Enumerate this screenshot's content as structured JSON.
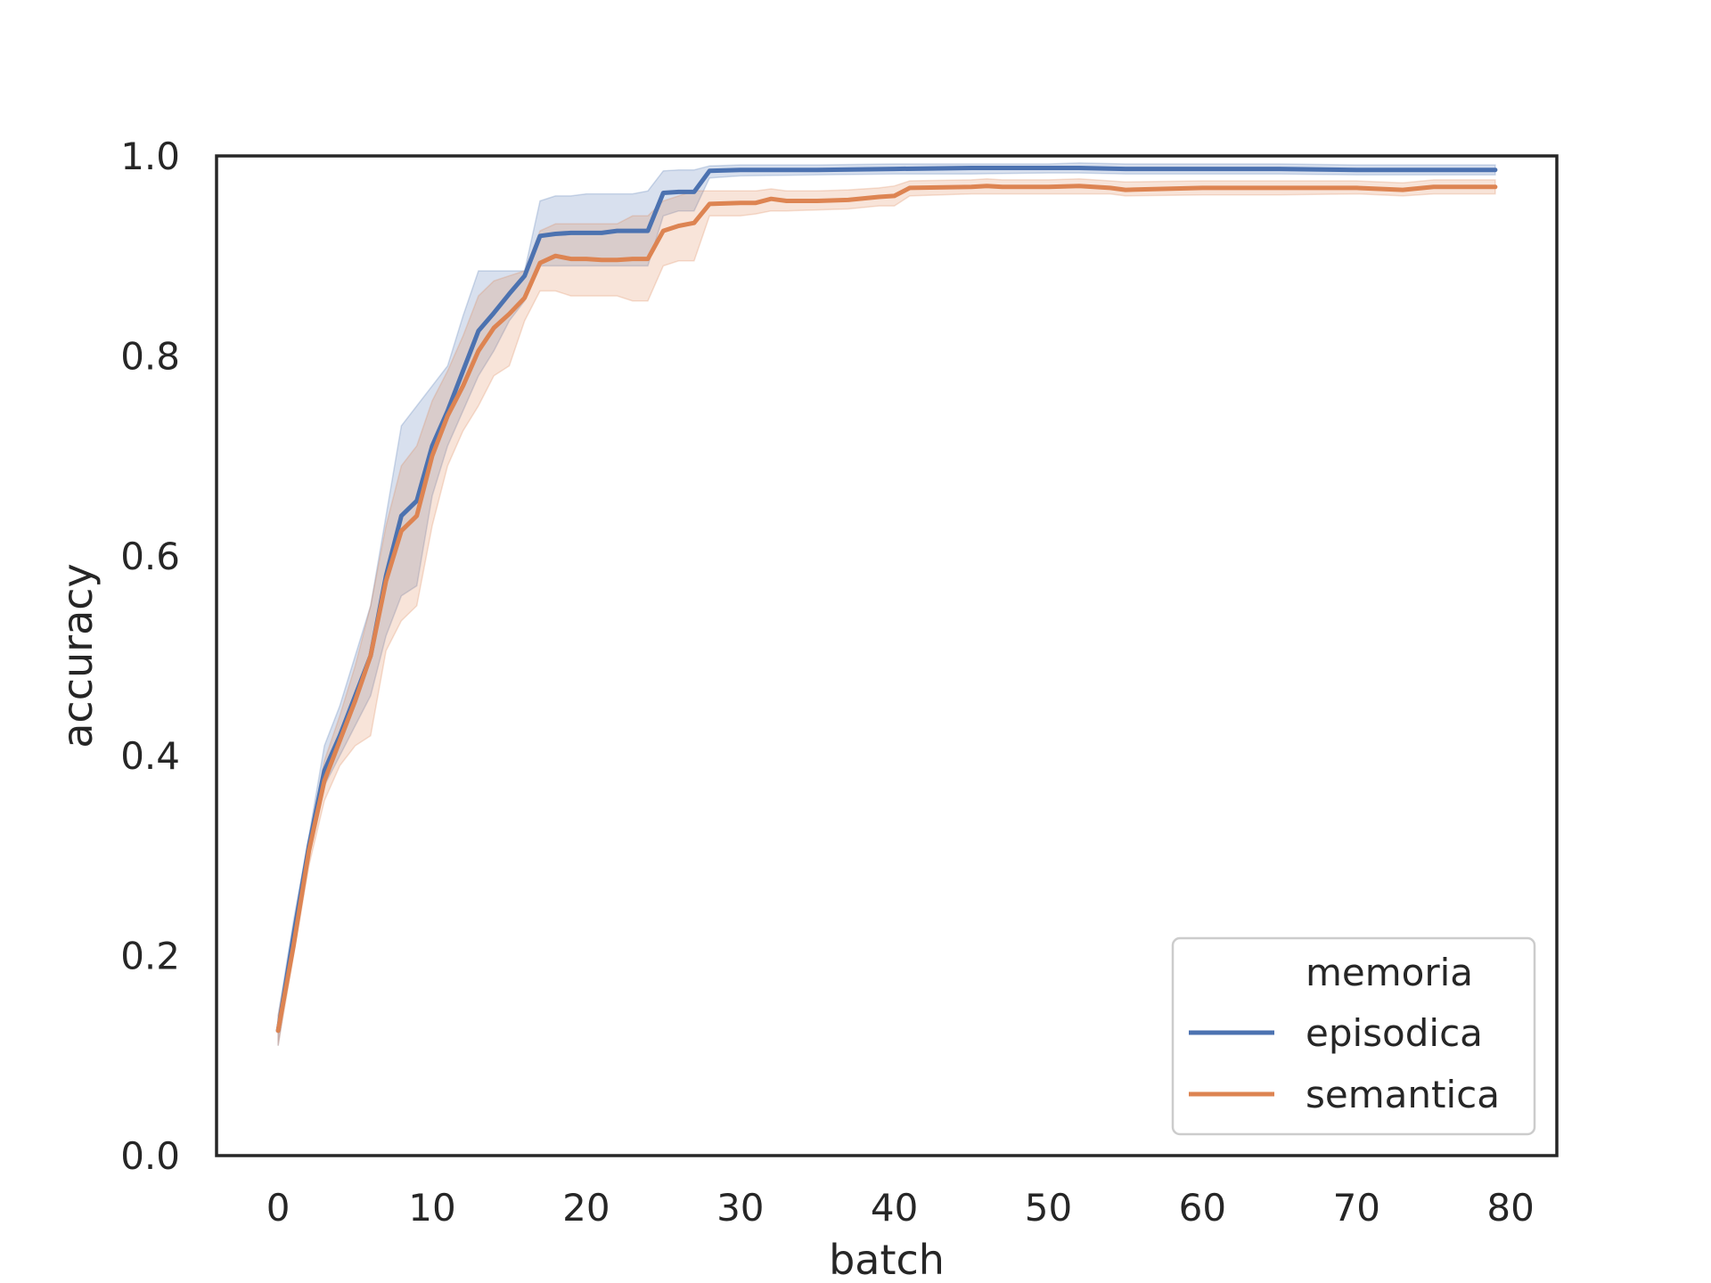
{
  "chart_data": {
    "type": "line",
    "title": "",
    "xlabel": "batch",
    "ylabel": "accuracy",
    "xlim": [
      -4,
      83
    ],
    "ylim": [
      0.0,
      1.0
    ],
    "xticks": [
      0,
      10,
      20,
      30,
      40,
      50,
      60,
      70,
      80
    ],
    "xtick_labels": [
      "0",
      "10",
      "20",
      "30",
      "40",
      "50",
      "60",
      "70",
      "80"
    ],
    "yticks": [
      0.0,
      0.2,
      0.4,
      0.6,
      0.8,
      1.0
    ],
    "ytick_labels": [
      "0.0",
      "0.2",
      "0.4",
      "0.6",
      "0.8",
      "1.0"
    ],
    "grid": false,
    "legend": {
      "title": "memoria",
      "placement": "lower-right"
    },
    "series": [
      {
        "name": "episodica",
        "color": "#4c72b0",
        "x": [
          0,
          1,
          2,
          3,
          4,
          5,
          6,
          7,
          8,
          9,
          10,
          11,
          12,
          13,
          14,
          15,
          16,
          17,
          18,
          19,
          20,
          21,
          22,
          23,
          24,
          25,
          26,
          27,
          28,
          30,
          35,
          40,
          45,
          50,
          52,
          55,
          60,
          65,
          70,
          75,
          79
        ],
        "values": [
          0.125,
          0.22,
          0.31,
          0.385,
          0.42,
          0.46,
          0.5,
          0.58,
          0.64,
          0.655,
          0.71,
          0.745,
          0.785,
          0.825,
          0.843,
          0.862,
          0.88,
          0.92,
          0.922,
          0.923,
          0.923,
          0.923,
          0.925,
          0.925,
          0.925,
          0.963,
          0.964,
          0.964,
          0.985,
          0.986,
          0.986,
          0.987,
          0.988,
          0.988,
          0.988,
          0.987,
          0.987,
          0.987,
          0.986,
          0.986,
          0.986
        ],
        "band_lower": [
          0.11,
          0.21,
          0.3,
          0.37,
          0.4,
          0.43,
          0.46,
          0.52,
          0.56,
          0.57,
          0.66,
          0.71,
          0.745,
          0.78,
          0.805,
          0.835,
          0.855,
          0.89,
          0.89,
          0.89,
          0.89,
          0.89,
          0.89,
          0.89,
          0.89,
          0.94,
          0.945,
          0.945,
          0.978,
          0.98,
          0.981,
          0.982,
          0.982,
          0.983,
          0.983,
          0.982,
          0.982,
          0.982,
          0.981,
          0.981,
          0.981
        ],
        "band_upper": [
          0.14,
          0.235,
          0.32,
          0.41,
          0.45,
          0.5,
          0.55,
          0.64,
          0.73,
          0.75,
          0.77,
          0.79,
          0.84,
          0.885,
          0.885,
          0.885,
          0.885,
          0.955,
          0.96,
          0.96,
          0.962,
          0.962,
          0.962,
          0.962,
          0.965,
          0.985,
          0.986,
          0.986,
          0.99,
          0.991,
          0.991,
          0.992,
          0.992,
          0.992,
          0.993,
          0.992,
          0.992,
          0.992,
          0.991,
          0.991,
          0.991
        ]
      },
      {
        "name": "semantica",
        "color": "#dd8452",
        "x": [
          0,
          1,
          2,
          3,
          4,
          5,
          6,
          7,
          8,
          9,
          10,
          11,
          12,
          13,
          14,
          15,
          16,
          17,
          18,
          19,
          20,
          21,
          22,
          23,
          24,
          25,
          26,
          27,
          28,
          30,
          31,
          32,
          33,
          35,
          37,
          39,
          40,
          41,
          45,
          46,
          47,
          50,
          52,
          54,
          55,
          60,
          65,
          70,
          73,
          75,
          79
        ],
        "values": [
          0.125,
          0.21,
          0.305,
          0.375,
          0.415,
          0.455,
          0.5,
          0.575,
          0.625,
          0.64,
          0.7,
          0.74,
          0.77,
          0.805,
          0.828,
          0.842,
          0.858,
          0.893,
          0.9,
          0.897,
          0.897,
          0.896,
          0.896,
          0.897,
          0.897,
          0.925,
          0.93,
          0.933,
          0.952,
          0.953,
          0.953,
          0.957,
          0.955,
          0.955,
          0.956,
          0.959,
          0.96,
          0.968,
          0.969,
          0.97,
          0.969,
          0.969,
          0.97,
          0.968,
          0.966,
          0.968,
          0.968,
          0.968,
          0.966,
          0.969,
          0.969
        ],
        "band_lower": [
          0.11,
          0.2,
          0.29,
          0.355,
          0.39,
          0.41,
          0.42,
          0.505,
          0.535,
          0.55,
          0.63,
          0.69,
          0.725,
          0.75,
          0.78,
          0.79,
          0.835,
          0.865,
          0.865,
          0.86,
          0.86,
          0.86,
          0.86,
          0.855,
          0.855,
          0.89,
          0.895,
          0.895,
          0.94,
          0.94,
          0.942,
          0.945,
          0.945,
          0.946,
          0.947,
          0.95,
          0.95,
          0.96,
          0.962,
          0.962,
          0.962,
          0.962,
          0.962,
          0.962,
          0.96,
          0.961,
          0.961,
          0.962,
          0.96,
          0.962,
          0.962
        ],
        "band_upper": [
          0.14,
          0.22,
          0.315,
          0.395,
          0.44,
          0.49,
          0.55,
          0.63,
          0.69,
          0.71,
          0.755,
          0.785,
          0.82,
          0.86,
          0.875,
          0.88,
          0.885,
          0.925,
          0.932,
          0.932,
          0.932,
          0.932,
          0.932,
          0.94,
          0.94,
          0.955,
          0.96,
          0.965,
          0.965,
          0.965,
          0.965,
          0.967,
          0.965,
          0.965,
          0.966,
          0.968,
          0.97,
          0.975,
          0.976,
          0.977,
          0.976,
          0.976,
          0.977,
          0.975,
          0.974,
          0.975,
          0.975,
          0.975,
          0.973,
          0.976,
          0.976
        ]
      }
    ]
  }
}
